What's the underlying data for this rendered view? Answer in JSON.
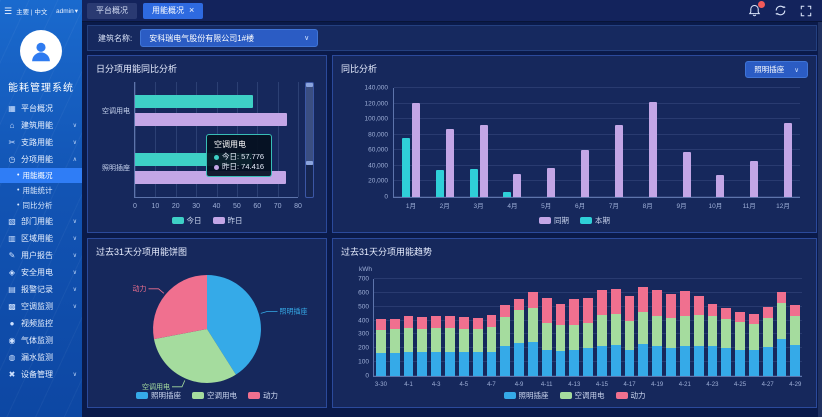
{
  "sidebar": {
    "top": {
      "menu_label": "主要 | 中文",
      "user": "admin",
      "caret": "▾"
    },
    "app_title": "能耗管理系统",
    "items": [
      {
        "label": "平台概况",
        "icon": "dashboard-icon",
        "glyph": "▦",
        "chevron": ""
      },
      {
        "label": "建筑用能",
        "icon": "building-icon",
        "glyph": "⌂",
        "chevron": "∨"
      },
      {
        "label": "支路用能",
        "icon": "branch-icon",
        "glyph": "✂",
        "chevron": "∨"
      },
      {
        "label": "分项用能",
        "icon": "subitem-icon",
        "glyph": "◷",
        "chevron": "∧",
        "children": [
          {
            "label": "用能概况",
            "active": true
          },
          {
            "label": "用能统计",
            "active": false
          },
          {
            "label": "同比分析",
            "active": false
          }
        ]
      },
      {
        "label": "部门用能",
        "icon": "department-icon",
        "glyph": "▧",
        "chevron": "∨"
      },
      {
        "label": "区域用能",
        "icon": "region-icon",
        "glyph": "▥",
        "chevron": "∨"
      },
      {
        "label": "用户报告",
        "icon": "report-icon",
        "glyph": "✎",
        "chevron": "∨"
      },
      {
        "label": "安全用电",
        "icon": "safety-icon",
        "glyph": "◈",
        "chevron": "∨"
      },
      {
        "label": "报警记录",
        "icon": "alarm-log-icon",
        "glyph": "▤",
        "chevron": "∨"
      },
      {
        "label": "空调监测",
        "icon": "hvac-monitor-icon",
        "glyph": "▩",
        "chevron": "∨"
      },
      {
        "label": "视频监控",
        "icon": "camera-icon",
        "glyph": "●",
        "chevron": ""
      },
      {
        "label": "气体监测",
        "icon": "gas-monitor-icon",
        "glyph": "◉",
        "chevron": ""
      },
      {
        "label": "漏水监测",
        "icon": "leak-monitor-icon",
        "glyph": "◍",
        "chevron": ""
      },
      {
        "label": "设备管理",
        "icon": "device-manage-icon",
        "glyph": "✖",
        "chevron": "∨"
      }
    ]
  },
  "topbar": {
    "tabs": [
      {
        "label": "平台概况",
        "active": false,
        "closable": false
      },
      {
        "label": "用能概况",
        "active": true,
        "closable": true
      }
    ]
  },
  "filter": {
    "label": "建筑名称:",
    "value": "安科瑞电气股份有限公司1#楼"
  },
  "colors": {
    "teal": "#3ed0c6",
    "purple": "#c3a6e6",
    "blue": "#35aae8",
    "green": "#a5dc9e",
    "pink": "#f0708f",
    "accent": "#2f7df6",
    "panel": "#16285c",
    "badge": "#f25a5a"
  },
  "chart_data": [
    {
      "type": "bar",
      "orientation": "horizontal",
      "title": "日分项用能同比分析",
      "categories": [
        "空调用电",
        "照明插座"
      ],
      "series": [
        {
          "name": "今日",
          "color": "#3ed0c6",
          "values": [
            57.776,
            57.3
          ]
        },
        {
          "name": "昨日",
          "color": "#c3a6e6",
          "values": [
            74.416,
            74.1
          ]
        }
      ],
      "xlim": [
        0,
        80
      ],
      "xticks": [
        0,
        10,
        20,
        30,
        40,
        50,
        60,
        70,
        80
      ],
      "grid": true,
      "legend_position": "bottom",
      "tooltip": {
        "title": "空调用电",
        "rows": [
          {
            "name": "今日",
            "value": "57.776",
            "color": "#3ed0c6"
          },
          {
            "name": "昨日",
            "value": "74.416",
            "color": "#c3a6e6"
          }
        ]
      }
    },
    {
      "type": "bar",
      "title": "同比分析",
      "selector_value": "照明插座",
      "categories": [
        "1月",
        "2月",
        "3月",
        "4月",
        "5月",
        "6月",
        "7月",
        "8月",
        "9月",
        "10月",
        "11月",
        "12月"
      ],
      "series": [
        {
          "name": "本期",
          "color": "#2fd0d8",
          "values": [
            76000,
            34500,
            36500,
            6000,
            0,
            0,
            0,
            0,
            0,
            0,
            0,
            0
          ]
        },
        {
          "name": "同期",
          "color": "#c3a6e6",
          "values": [
            121000,
            88000,
            92000,
            29000,
            37000,
            61000,
            93000,
            122500,
            57500,
            28500,
            46000,
            95000
          ]
        }
      ],
      "legend_order": [
        "同期",
        "本期"
      ],
      "ylim": [
        0,
        140000
      ],
      "ytick_step": 20000,
      "grid": true,
      "legend_position": "bottom"
    },
    {
      "type": "pie",
      "title": "过去31天分项用能饼图",
      "slices": [
        {
          "name": "照明插座",
          "pct": 41,
          "color": "#35aae8"
        },
        {
          "name": "空调用电",
          "pct": 31,
          "color": "#a5dc9e"
        },
        {
          "name": "动力",
          "pct": 28,
          "color": "#f0708f"
        }
      ],
      "legend_position": "bottom"
    },
    {
      "type": "stacked-bar",
      "title": "过去31天分项用能趋势",
      "ylabel": "kWh",
      "ylim": [
        0,
        700
      ],
      "ytick_step": 100,
      "categories": [
        "3-30",
        "3-31",
        "4-1",
        "4-2",
        "4-3",
        "4-4",
        "4-5",
        "4-6",
        "4-7",
        "4-8",
        "4-9",
        "4-10",
        "4-11",
        "4-12",
        "4-13",
        "4-14",
        "4-15",
        "4-16",
        "4-17",
        "4-18",
        "4-19",
        "4-20",
        "4-21",
        "4-22",
        "4-23",
        "4-24",
        "4-25",
        "4-26",
        "4-27",
        "4-28",
        "4-29"
      ],
      "series": [
        {
          "name": "照明插座",
          "color": "#35aae8",
          "values": [
            165,
            165,
            175,
            170,
            175,
            175,
            170,
            170,
            175,
            215,
            235,
            245,
            190,
            180,
            185,
            200,
            220,
            225,
            190,
            230,
            218,
            205,
            215,
            220,
            220,
            205,
            190,
            185,
            210,
            265,
            222
          ]
        },
        {
          "name": "空调用电",
          "color": "#a5dc9e",
          "values": [
            165,
            175,
            170,
            172,
            175,
            170,
            170,
            172,
            180,
            210,
            240,
            245,
            190,
            190,
            185,
            185,
            220,
            220,
            205,
            230,
            217,
            215,
            220,
            220,
            215,
            203,
            200,
            190,
            210,
            260,
            208
          ]
        },
        {
          "name": "动力",
          "color": "#f0708f",
          "values": [
            80,
            75,
            85,
            83,
            80,
            90,
            85,
            78,
            85,
            85,
            80,
            120,
            185,
            150,
            185,
            180,
            180,
            185,
            180,
            180,
            185,
            170,
            175,
            140,
            85,
            80,
            70,
            70,
            80,
            80,
            85
          ]
        }
      ],
      "legend_position": "bottom"
    }
  ]
}
